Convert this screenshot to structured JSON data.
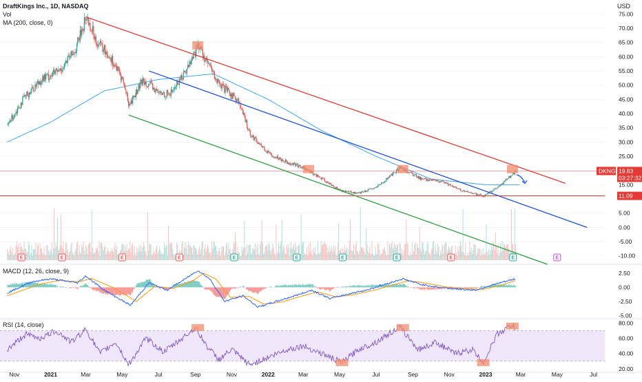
{
  "header": {
    "symbol_line": "DraftKings Inc., 1D, NASDAQ",
    "vol_label": "Vol",
    "ma_label": "MA (200, close, 0)",
    "currency": "USD"
  },
  "colors": {
    "up": "#26a69a",
    "down": "#ef5350",
    "ma": "#42a5f5",
    "channel_top": "#e53935",
    "channel_mid": "#1e4fd8",
    "channel_bottom": "#2e9e3e",
    "support": "#e53935",
    "highlight": "#f28b6b",
    "macd": "#2962ff",
    "signal": "#ff9800",
    "rsi": "#7e57c2",
    "rsi_band": "#e9dcf7"
  },
  "chart_data": [
    {
      "type": "candlestick",
      "title": "DraftKings Inc., 1D, NASDAQ",
      "ylabel": "USD",
      "y_ticks": [
        75.0,
        70.0,
        65.0,
        60.0,
        55.0,
        50.0,
        45.0,
        40.0,
        35.0,
        30.0,
        25.0,
        20.0,
        15.0,
        10.0,
        5.0,
        0.0,
        -5.0,
        -10.0
      ],
      "ylim": [
        -12,
        78
      ],
      "x_ticks": [
        "Nov",
        "2021",
        "Mar",
        "May",
        "Jul",
        "Sep",
        "Nov",
        "2022",
        "Mar",
        "May",
        "Jul",
        "Sep",
        "Nov",
        "2023",
        "Mar",
        "May",
        "Jul"
      ],
      "price_path": [
        [
          "2020-10-20",
          36
        ],
        [
          "2020-11-15",
          45
        ],
        [
          "2020-12-15",
          52
        ],
        [
          "2021-01-15",
          55
        ],
        [
          "2021-02-10",
          62
        ],
        [
          "2021-03-01",
          74
        ],
        [
          "2021-03-20",
          65
        ],
        [
          "2021-04-10",
          60
        ],
        [
          "2021-05-01",
          52
        ],
        [
          "2021-05-12",
          43
        ],
        [
          "2021-06-05",
          52
        ],
        [
          "2021-07-01",
          47
        ],
        [
          "2021-07-20",
          47
        ],
        [
          "2021-08-15",
          55
        ],
        [
          "2021-09-05",
          64
        ],
        [
          "2021-09-20",
          58
        ],
        [
          "2021-10-10",
          50
        ],
        [
          "2021-11-10",
          45
        ],
        [
          "2021-12-01",
          33
        ],
        [
          "2022-01-01",
          26
        ],
        [
          "2022-02-01",
          23
        ],
        [
          "2022-03-01",
          21
        ],
        [
          "2022-04-01",
          17
        ],
        [
          "2022-05-01",
          13
        ],
        [
          "2022-06-01",
          12
        ],
        [
          "2022-07-01",
          14
        ],
        [
          "2022-08-10",
          21
        ],
        [
          "2022-09-15",
          17
        ],
        [
          "2022-10-20",
          16
        ],
        [
          "2022-11-20",
          13
        ],
        [
          "2022-12-28",
          11
        ],
        [
          "2023-01-20",
          14
        ],
        [
          "2023-02-20",
          19.83
        ]
      ],
      "ma200_path": [
        [
          "2020-10-20",
          30
        ],
        [
          "2021-01-01",
          37
        ],
        [
          "2021-04-01",
          48
        ],
        [
          "2021-07-01",
          52
        ],
        [
          "2021-10-01",
          54
        ],
        [
          "2022-01-01",
          45
        ],
        [
          "2022-04-01",
          34
        ],
        [
          "2022-07-01",
          25
        ],
        [
          "2022-10-01",
          17
        ],
        [
          "2023-01-01",
          15
        ],
        [
          "2023-03-01",
          15
        ]
      ],
      "trend_lines": [
        {
          "name": "channel-top",
          "from": [
            "2021-03-01",
            74
          ],
          "to": [
            "2023-05-15",
            15.5
          ]
        },
        {
          "name": "channel-mid",
          "from": [
            "2021-06-15",
            55
          ],
          "to": [
            "2023-06-20",
            0
          ]
        },
        {
          "name": "channel-bottom",
          "from": [
            "2021-05-12",
            39.5
          ],
          "to": [
            "2023-04-15",
            -13
          ]
        }
      ],
      "support_levels": [
        19.83,
        11.09
      ],
      "markers": [
        {
          "date": "2021-09-05",
          "y": 64,
          "label": "resistance"
        },
        {
          "date": "2022-03-10",
          "y": 20.5,
          "label": "resistance"
        },
        {
          "date": "2022-08-15",
          "y": 20.5,
          "label": "resistance"
        },
        {
          "date": "2023-02-15",
          "y": 20.5,
          "label": "resistance"
        }
      ],
      "price_tags": [
        {
          "label": "DKNG",
          "value": "19.83",
          "sub": "03:27:32"
        },
        {
          "value": "11.09"
        }
      ],
      "earnings_events": [
        "2020-11-13",
        "2021-01-20",
        "2021-05-01",
        "2021-08-05",
        "2021-11-05",
        "2022-02-18",
        "2022-05-06",
        "2022-08-05",
        "2022-11-04",
        "2023-02-16",
        "2023-05-01"
      ],
      "earnings_label": "E"
    },
    {
      "type": "line",
      "title": "MACD (12, 26, close, 9)",
      "y_ticks": [
        2.5,
        0.0,
        -2.5,
        -5.0
      ],
      "ylim": [
        -5.2,
        3.6
      ],
      "macd_path": [
        [
          "2020-10-20",
          -1.0
        ],
        [
          "2020-12-01",
          1.0
        ],
        [
          "2021-01-01",
          1.5
        ],
        [
          "2021-02-15",
          0.8
        ],
        [
          "2021-03-01",
          2.0
        ],
        [
          "2021-04-01",
          -0.5
        ],
        [
          "2021-05-15",
          -3.2
        ],
        [
          "2021-06-15",
          0.8
        ],
        [
          "2021-07-15",
          -0.5
        ],
        [
          "2021-08-15",
          1.5
        ],
        [
          "2021-09-05",
          3.0
        ],
        [
          "2021-09-25",
          1.5
        ],
        [
          "2021-10-20",
          -2.5
        ],
        [
          "2021-11-20",
          -1.5
        ],
        [
          "2021-12-15",
          -3.5
        ],
        [
          "2022-01-15",
          -2.5
        ],
        [
          "2022-02-15",
          -1.5
        ],
        [
          "2022-03-15",
          -0.5
        ],
        [
          "2022-04-15",
          -2.0
        ],
        [
          "2022-05-15",
          -1.2
        ],
        [
          "2022-06-15",
          -0.5
        ],
        [
          "2022-07-15",
          0.5
        ],
        [
          "2022-08-15",
          1.5
        ],
        [
          "2022-09-15",
          0.5
        ],
        [
          "2022-10-15",
          0.0
        ],
        [
          "2022-11-15",
          -0.3
        ],
        [
          "2022-12-15",
          -0.5
        ],
        [
          "2023-01-15",
          0.5
        ],
        [
          "2023-02-20",
          1.5
        ]
      ],
      "signal_path": [
        [
          "2020-10-20",
          -1.5
        ],
        [
          "2020-12-15",
          0.6
        ],
        [
          "2021-01-15",
          1.2
        ],
        [
          "2021-02-20",
          1.0
        ],
        [
          "2021-03-10",
          1.6
        ],
        [
          "2021-04-15",
          0.0
        ],
        [
          "2021-05-25",
          -2.5
        ],
        [
          "2021-06-25",
          0.2
        ],
        [
          "2021-07-25",
          -0.2
        ],
        [
          "2021-08-25",
          1.0
        ],
        [
          "2021-09-15",
          2.5
        ],
        [
          "2021-10-05",
          1.5
        ],
        [
          "2021-10-30",
          -1.8
        ],
        [
          "2021-11-30",
          -1.6
        ],
        [
          "2021-12-25",
          -3.0
        ],
        [
          "2022-01-25",
          -2.6
        ],
        [
          "2022-02-25",
          -1.6
        ],
        [
          "2022-03-25",
          -0.8
        ],
        [
          "2022-04-25",
          -1.7
        ],
        [
          "2022-05-25",
          -1.3
        ],
        [
          "2022-06-25",
          -0.6
        ],
        [
          "2022-07-25",
          0.3
        ],
        [
          "2022-08-25",
          1.2
        ],
        [
          "2022-09-25",
          0.7
        ],
        [
          "2022-10-25",
          0.1
        ],
        [
          "2022-11-25",
          -0.2
        ],
        [
          "2022-12-25",
          -0.4
        ],
        [
          "2023-01-25",
          0.3
        ],
        [
          "2023-02-20",
          1.2
        ]
      ]
    },
    {
      "type": "line",
      "title": "RSI (14, close)",
      "y_ticks": [
        80.0,
        60.0,
        40.0,
        20.0
      ],
      "ylim": [
        18,
        83
      ],
      "band": [
        30,
        70
      ],
      "rsi_path": [
        [
          "2020-10-20",
          45
        ],
        [
          "2020-11-20",
          65
        ],
        [
          "2020-12-15",
          60
        ],
        [
          "2021-01-10",
          70
        ],
        [
          "2021-02-05",
          55
        ],
        [
          "2021-03-01",
          72
        ],
        [
          "2021-03-25",
          40
        ],
        [
          "2021-04-20",
          55
        ],
        [
          "2021-05-12",
          25
        ],
        [
          "2021-06-10",
          60
        ],
        [
          "2021-07-10",
          42
        ],
        [
          "2021-08-10",
          60
        ],
        [
          "2021-09-01",
          74
        ],
        [
          "2021-09-20",
          50
        ],
        [
          "2021-10-10",
          32
        ],
        [
          "2021-11-01",
          45
        ],
        [
          "2021-12-01",
          25
        ],
        [
          "2022-01-01",
          35
        ],
        [
          "2022-02-01",
          45
        ],
        [
          "2022-03-01",
          50
        ],
        [
          "2022-04-01",
          40
        ],
        [
          "2022-05-05",
          28
        ],
        [
          "2022-06-01",
          45
        ],
        [
          "2022-07-01",
          55
        ],
        [
          "2022-08-10",
          75
        ],
        [
          "2022-09-10",
          45
        ],
        [
          "2022-10-10",
          55
        ],
        [
          "2022-11-10",
          40
        ],
        [
          "2022-12-10",
          45
        ],
        [
          "2022-12-28",
          28
        ],
        [
          "2023-01-20",
          65
        ],
        [
          "2023-02-15",
          78
        ],
        [
          "2023-02-20",
          72
        ]
      ],
      "markers": [
        {
          "date": "2021-09-05",
          "y": 74
        },
        {
          "date": "2022-05-05",
          "y": 28
        },
        {
          "date": "2022-08-15",
          "y": 74
        },
        {
          "date": "2022-12-28",
          "y": 28
        },
        {
          "date": "2023-02-15",
          "y": 76
        }
      ]
    }
  ]
}
